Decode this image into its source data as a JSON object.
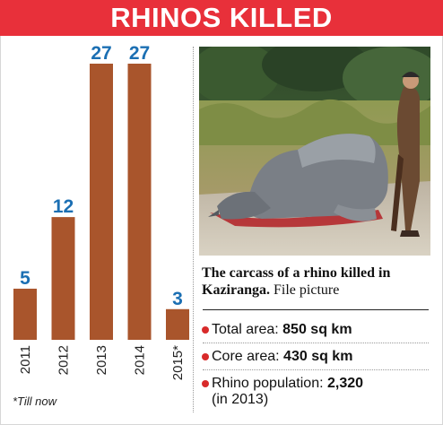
{
  "title": "RHINOS KILLED",
  "footnote": "*Till now",
  "chart_data": {
    "type": "bar",
    "categories": [
      "2011",
      "2012",
      "2013",
      "2014",
      "2015*"
    ],
    "values": [
      5,
      12,
      27,
      27,
      3
    ],
    "value_labels": [
      "5",
      "12",
      "27",
      "27",
      "3"
    ],
    "title": "RHINOS KILLED",
    "xlabel": "",
    "ylabel": "",
    "ylim": [
      0,
      27
    ],
    "grid": false,
    "legend": "none",
    "bar_color": "#a9552c",
    "label_color": "#1b6fb3"
  },
  "caption": {
    "bold": "The carcass of a rhino killed in Kaziranga.",
    "regular": " File picture"
  },
  "facts": [
    {
      "label": "Total area: ",
      "value": "850 sq km",
      "extra": ""
    },
    {
      "label": "Core area: ",
      "value": "430 sq km",
      "extra": ""
    },
    {
      "label": "Rhino population: ",
      "value": "2,320",
      "extra": "(in 2013)"
    }
  ],
  "colors": {
    "banner": "#e8303a",
    "bullet": "#d82a2a"
  }
}
